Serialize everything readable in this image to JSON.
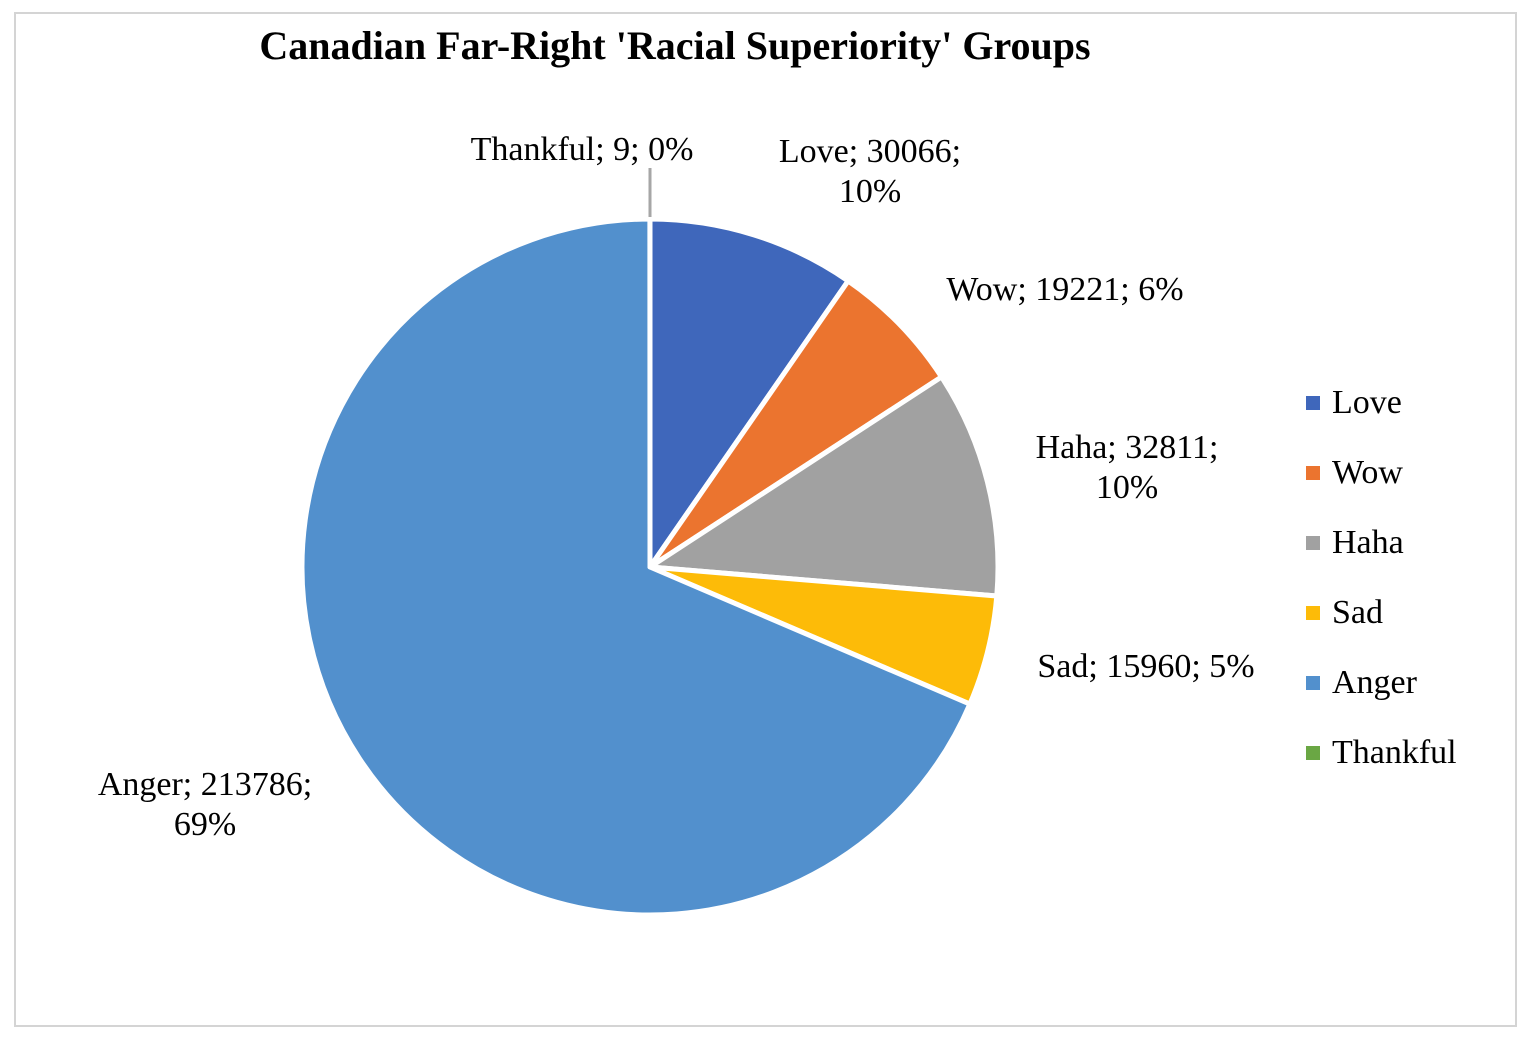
{
  "chart_data": {
    "type": "pie",
    "title": "Canadian Far-Right 'Racial Superiority' Groups",
    "slices": [
      {
        "name": "Love",
        "value": 30066,
        "percent": "10%",
        "color": "#3f67bb",
        "label": [
          "Love; 30066;",
          "10%"
        ]
      },
      {
        "name": "Wow",
        "value": 19221,
        "percent": "6%",
        "color": "#eb742f",
        "label": [
          "Wow; 19221; 6%"
        ]
      },
      {
        "name": "Haha",
        "value": 32811,
        "percent": "10%",
        "color": "#a1a1a1",
        "label": [
          "Haha; 32811;",
          "10%"
        ]
      },
      {
        "name": "Sad",
        "value": 15960,
        "percent": "5%",
        "color": "#fdbb08",
        "label": [
          "Sad; 15960; 5%"
        ]
      },
      {
        "name": "Anger",
        "value": 213786,
        "percent": "69%",
        "color": "#5290cd",
        "label": [
          "Anger; 213786;",
          "69%"
        ]
      },
      {
        "name": "Thankful",
        "value": 9,
        "percent": "0%",
        "color": "#6aa744",
        "label": [
          "Thankful; 9; 0%"
        ]
      }
    ],
    "legend_position": "right"
  }
}
